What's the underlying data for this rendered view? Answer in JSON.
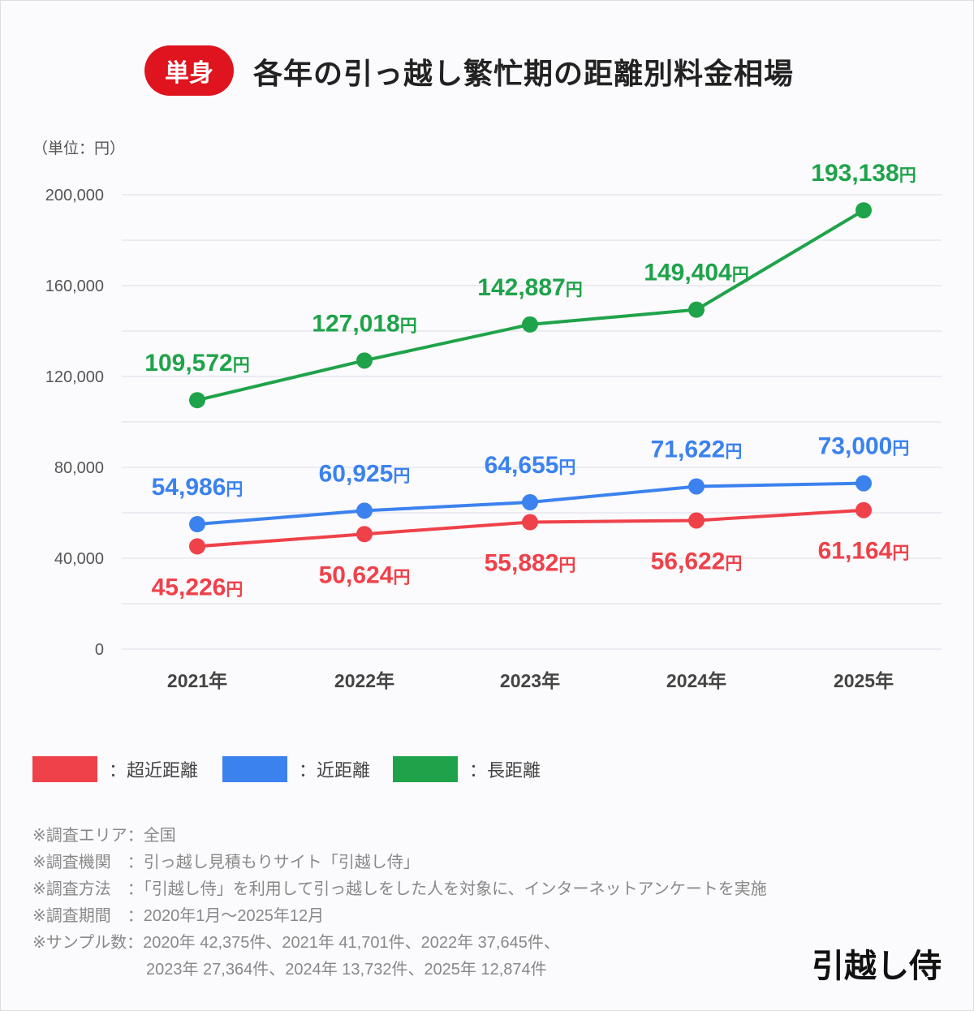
{
  "header": {
    "badge": "単身",
    "title": "各年の引っ越し繁忙期の距離別料金相場"
  },
  "chart_data": {
    "type": "line",
    "title": "各年の引っ越し繁忙期の距離別料金相場",
    "unit_label": "（単位：円）",
    "categories": [
      "2021年",
      "2022年",
      "2023年",
      "2024年",
      "2025年"
    ],
    "ylim": [
      0,
      200000
    ],
    "yticks": [
      0,
      40000,
      80000,
      120000,
      160000,
      200000
    ],
    "ytick_labels": [
      "0",
      "40,000",
      "80,000",
      "120,000",
      "160,000",
      "200,000"
    ],
    "grid": true,
    "legend_position": "bottom-left",
    "series": [
      {
        "name": "超近距離",
        "color": "#ef4149",
        "values": [
          45226,
          50624,
          55882,
          56622,
          61164
        ],
        "labels": [
          "45,226",
          "50,624",
          "55,882",
          "56,622",
          "61,164"
        ],
        "label_side": "below"
      },
      {
        "name": "近距離",
        "color": "#3b82ee",
        "values": [
          54986,
          60925,
          64655,
          71622,
          73000
        ],
        "labels": [
          "54,986",
          "60,925",
          "64,655",
          "71,622",
          "73,000"
        ],
        "label_side": "above"
      },
      {
        "name": "長距離",
        "color": "#1fa34a",
        "values": [
          109572,
          127018,
          142887,
          149404,
          193138
        ],
        "labels": [
          "109,572",
          "127,018",
          "142,887",
          "149,404",
          "193,138"
        ],
        "label_side": "above"
      }
    ],
    "value_suffix": "円"
  },
  "legend": [
    {
      "label": "：超近距離",
      "color": "#ef4149"
    },
    {
      "label": "：近距離",
      "color": "#3b82ee"
    },
    {
      "label": "：長距離",
      "color": "#1fa34a"
    }
  ],
  "notes": [
    "※調査エリア：全国",
    "※調査機関　：引っ越し見積もりサイト「引越し侍」",
    "※調査方法　：「引越し侍」を利用して引っ越しをした人を対象に、インターネットアンケートを実施",
    "※調査期間　：2020年1月～2025年12月",
    "※サンプル数：2020年 42,375件、2021年 41,701件、2022年 37,645件、",
    "　　　　　　　2023年 27,364件、2024年 13,732件、2025年 12,874件"
  ],
  "logo": "引越し侍"
}
